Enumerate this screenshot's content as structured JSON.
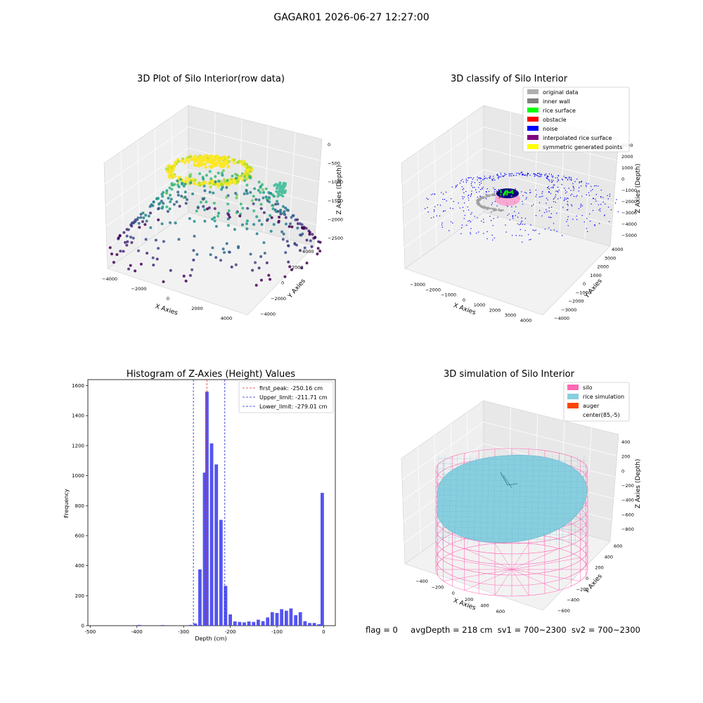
{
  "figure_title": "GAGAR01 2026-06-27 12:27:00",
  "footer": {
    "flag": "flag = 0",
    "avg": "avgDepth = 218 cm",
    "sv1": "sv1 = 700~2300",
    "sv2": "sv2 = 700~2300"
  },
  "colors": {
    "hist_bar": "#4b4bf0",
    "first_peak": "#e03030",
    "limit": "#2020e0",
    "silo": "#ff69b4",
    "rice": "#87cedf",
    "auger": "#ff4500",
    "original": "#b0b0b0",
    "inner_wall": "#808080",
    "rice_surface": "#00ff00",
    "obstacle": "#ff0000",
    "noise": "#0000ff",
    "interpolated": "#800080",
    "symmetric": "#ffff00"
  },
  "chart_data": [
    {
      "type": "scatter",
      "title": "3D Plot of Silo Interior(row data)",
      "xlabel": "X Axies",
      "ylabel": "Y Axies",
      "zlabel": "Z Axies (Depth)",
      "xticks": [
        "−4000",
        "−2000",
        "0",
        "2000",
        "4000"
      ],
      "yticks": [
        "4000",
        "2000",
        "0",
        "−2000",
        "−4000"
      ],
      "zticks": [
        "0",
        "−500",
        "−1000",
        "−1500",
        "−2000",
        "−2500"
      ],
      "colormap": "viridis (colored by depth)"
    },
    {
      "type": "scatter",
      "title": "3D classify of Silo Interior",
      "xlabel": "X Axies",
      "ylabel": "Y Axies",
      "zlabel": "Z Axies (Depth)",
      "xticks": [
        "−3000",
        "−2000",
        "−1000",
        "0",
        "1000",
        "2000",
        "3000",
        "4000"
      ],
      "yticks": [
        "4000",
        "3000",
        "2000",
        "1000",
        "0",
        "−1000",
        "−2000",
        "−3000",
        "−4000"
      ],
      "zticks": [
        "3000",
        "2000",
        "1000",
        "0",
        "−1000",
        "−2000",
        "−3000",
        "−4000",
        "−5000"
      ],
      "legend_position": "top-right",
      "legend": [
        {
          "label": "original data",
          "color": "#b0b0b0"
        },
        {
          "label": "inner wall",
          "color": "#808080"
        },
        {
          "label": "rice surface",
          "color": "#00ff00"
        },
        {
          "label": "obstacle",
          "color": "#ff0000"
        },
        {
          "label": "noise",
          "color": "#0000ff"
        },
        {
          "label": "interpolated rice surface",
          "color": "#800080"
        },
        {
          "label": "symmetric generated points",
          "color": "#ffff00"
        }
      ]
    },
    {
      "type": "bar",
      "title": "Histogram of Z-Axies (Height) Values",
      "xlabel": "Depth (cm)",
      "ylabel": "Frequency",
      "xlim": [
        -505,
        25
      ],
      "ylim": [
        0,
        1640
      ],
      "xticks": [
        -500,
        -400,
        -300,
        -200,
        -100,
        0
      ],
      "yticks": [
        0,
        200,
        400,
        600,
        800,
        1000,
        1200,
        1400,
        1600
      ],
      "bin_width": 10,
      "bins": [
        {
          "x": -395,
          "y": 5
        },
        {
          "x": -345,
          "y": 4
        },
        {
          "x": -285,
          "y": 5
        },
        {
          "x": -275,
          "y": 15
        },
        {
          "x": -265,
          "y": 375
        },
        {
          "x": -255,
          "y": 1020
        },
        {
          "x": -250,
          "y": 1560
        },
        {
          "x": -240,
          "y": 1215
        },
        {
          "x": -230,
          "y": 1075
        },
        {
          "x": -220,
          "y": 705
        },
        {
          "x": -210,
          "y": 265
        },
        {
          "x": -200,
          "y": 75
        },
        {
          "x": -190,
          "y": 28
        },
        {
          "x": -180,
          "y": 25
        },
        {
          "x": -170,
          "y": 22
        },
        {
          "x": -160,
          "y": 28
        },
        {
          "x": -150,
          "y": 25
        },
        {
          "x": -140,
          "y": 40
        },
        {
          "x": -130,
          "y": 30
        },
        {
          "x": -120,
          "y": 55
        },
        {
          "x": -110,
          "y": 90
        },
        {
          "x": -100,
          "y": 85
        },
        {
          "x": -90,
          "y": 110
        },
        {
          "x": -80,
          "y": 100
        },
        {
          "x": -70,
          "y": 115
        },
        {
          "x": -60,
          "y": 70
        },
        {
          "x": -50,
          "y": 90
        },
        {
          "x": -40,
          "y": 30
        },
        {
          "x": -30,
          "y": 18
        },
        {
          "x": -20,
          "y": 18
        },
        {
          "x": -10,
          "y": 10
        },
        {
          "x": -3,
          "y": 885
        }
      ],
      "vlines": [
        {
          "label": "first_peak: -250.16 cm",
          "x": -250.16,
          "color": "#e03030"
        },
        {
          "label": "Upper_limit: -211.71 cm",
          "x": -211.71,
          "color": "#2020e0"
        },
        {
          "label": "Lower_limit: -279.01 cm",
          "x": -279.01,
          "color": "#2020e0"
        }
      ],
      "legend_position": "top-right"
    },
    {
      "type": "surface",
      "title": "3D simulation of Silo Interior",
      "xlabel": "X Axies",
      "ylabel": "Y Axies",
      "zlabel": "Z Axies (Depth)",
      "xticks": [
        "−400",
        "−200",
        "0",
        "200",
        "400",
        "600"
      ],
      "yticks": [
        "600",
        "400",
        "200",
        "0",
        "−200",
        "−400",
        "−600"
      ],
      "zticks": [
        "400",
        "200",
        "0",
        "−200",
        "−400",
        "−600",
        "−800"
      ],
      "legend_position": "top-right",
      "legend": [
        {
          "label": "silo",
          "color": "#ff69b4"
        },
        {
          "label": "rice simulation",
          "color": "#87cedf"
        },
        {
          "label": "auger",
          "color": "#ff4500"
        },
        {
          "label": "center(85,-5)",
          "color": ""
        }
      ]
    }
  ]
}
